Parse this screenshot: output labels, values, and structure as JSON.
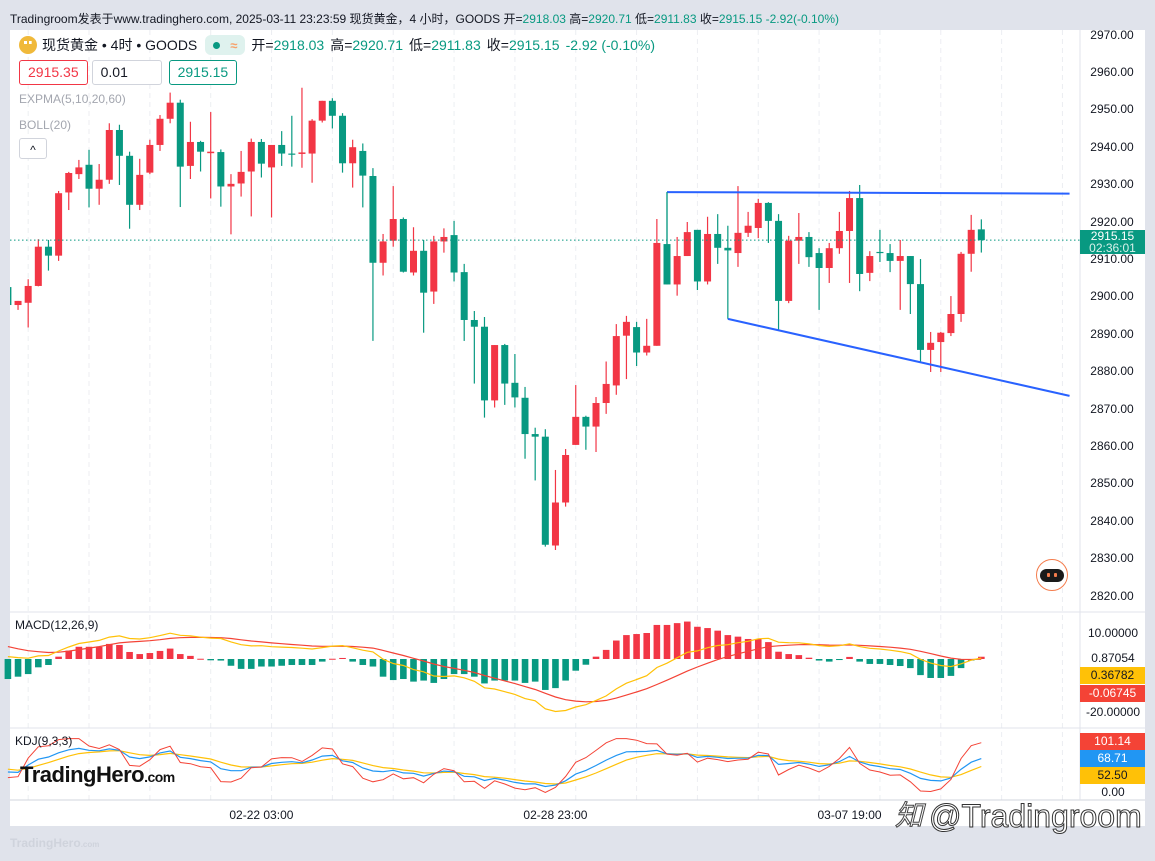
{
  "header": {
    "prefix": "Tradingroom发表于www.tradinghero.com, 2025-03-11 23:23:59 现货黄金，4 小时，GOODS ",
    "open_label": "开=",
    "open": "2918.03",
    "high_label": "高=",
    "high": "2920.71",
    "low_label": "低=",
    "low": "2911.83",
    "close_label": "收=",
    "close": "2915.15",
    "change": "-2.92(-0.10%)"
  },
  "legend": {
    "symbol": "现货黄金 • 4时 • GOODS",
    "coin_icon": "gold-coin-icon",
    "open_label": "开=",
    "open": "2918.03",
    "high_label": "高=",
    "high": "2920.71",
    "low_label": "低=",
    "low": "2911.83",
    "close_label": "收=",
    "close": "2915.15",
    "change": "-2.92 (-0.10%)",
    "wave_glyph": "≈"
  },
  "order": {
    "sell_price": "2915.35",
    "quantity": "0.01",
    "buy_price": "2915.15"
  },
  "indicators": {
    "expma": "EXPMA(5,10,20,60)",
    "boll": "BOLL(20)",
    "collapse_glyph": "^"
  },
  "price_axis": {
    "labels": [
      "2970.00",
      "2960.00",
      "2950.00",
      "2940.00",
      "2930.00",
      "2920.00",
      "2910.00",
      "2900.00",
      "2890.00",
      "2880.00",
      "2870.00",
      "2860.00",
      "2850.00",
      "2840.00",
      "2830.00",
      "2820.00"
    ],
    "current_price": "2915.15",
    "countdown": "02:36:01"
  },
  "macd": {
    "title": "MACD(12,26,9)",
    "axis_top": "10.00000",
    "axis_bottom": "-20.00000",
    "hist_value": "0.87054",
    "dif_value": "0.36782",
    "dea_value": "-0.06745"
  },
  "kdj": {
    "title": "KDJ(9,3,3)",
    "j_value": "101.14",
    "k_value": "68.71",
    "d_value": "52.50",
    "axis_zero": "0.00"
  },
  "time_axis": [
    {
      "label": "02-22 03:00",
      "index": 25
    },
    {
      "label": "02-28 23:00",
      "index": 54
    },
    {
      "label": "03-07 19:00",
      "index": 83
    }
  ],
  "branding": {
    "logo_main": "TradingHero",
    "logo_suffix": ".com",
    "watermark": "@Tradingroom",
    "watermark_icon": "知"
  },
  "colors": {
    "up": "#f23645",
    "down": "#089981",
    "dif": "#ffc107",
    "dea": "#f44336",
    "k": "#2196f3",
    "d": "#ffc107",
    "j": "#f44336",
    "trendline": "#2962ff"
  },
  "chart_data": {
    "type": "candlestick",
    "title": "现货黄金 4H",
    "ylim": [
      2815,
      2973
    ],
    "candles_ohlc": [
      [
        2902.6,
        2903.5,
        2896,
        2897.8
      ],
      [
        2897.8,
        2898.9,
        2896.5,
        2898.9
      ],
      [
        2898.4,
        2904.7,
        2891.8,
        2902.9
      ],
      [
        2902.9,
        2915.4,
        2902.8,
        2913.4
      ],
      [
        2913.4,
        2915.2,
        2907,
        2911
      ],
      [
        2911,
        2928.3,
        2909.6,
        2927.7
      ],
      [
        2927.9,
        2933.4,
        2923.2,
        2933.1
      ],
      [
        2932.8,
        2936.6,
        2931.5,
        2934.6
      ],
      [
        2935.3,
        2939.3,
        2923.9,
        2928.9
      ],
      [
        2928.9,
        2935.5,
        2924.6,
        2931.3
      ],
      [
        2931.3,
        2946.4,
        2930.2,
        2944.6
      ],
      [
        2944.6,
        2946,
        2929.9,
        2937.7
      ],
      [
        2937.7,
        2938.8,
        2918.2,
        2924.6
      ],
      [
        2924.6,
        2936.9,
        2923.2,
        2932.6
      ],
      [
        2933.2,
        2942,
        2932.8,
        2940.6
      ],
      [
        2940.6,
        2948.6,
        2939,
        2947.6
      ],
      [
        2947.6,
        2954.6,
        2946.4,
        2951.9
      ],
      [
        2951.9,
        2952.7,
        2924,
        2934.8
      ],
      [
        2935,
        2946.8,
        2931.5,
        2941.4
      ],
      [
        2941.4,
        2941.7,
        2933.5,
        2938.8
      ],
      [
        2938.4,
        2949.4,
        2926.3,
        2938.8
      ],
      [
        2938.7,
        2939.4,
        2924.1,
        2929.5
      ],
      [
        2929.5,
        2932.8,
        2916.7,
        2930.2
      ],
      [
        2930.3,
        2939,
        2926.8,
        2933.4
      ],
      [
        2933.5,
        2942.3,
        2921.5,
        2941.4
      ],
      [
        2941.4,
        2942.2,
        2931.9,
        2935.6
      ],
      [
        2934.6,
        2940.6,
        2921.2,
        2940.6
      ],
      [
        2940.6,
        2944.3,
        2935,
        2938.3
      ],
      [
        2938.3,
        2948.4,
        2934.8,
        2938
      ],
      [
        2938.2,
        2955.9,
        2934.5,
        2938.6
      ],
      [
        2938.3,
        2947.5,
        2930.5,
        2947.1
      ],
      [
        2947.1,
        2952.4,
        2946.6,
        2952.4
      ],
      [
        2952.4,
        2953.1,
        2945,
        2948.4
      ],
      [
        2948.4,
        2949.1,
        2933.2,
        2935.7
      ],
      [
        2935.7,
        2942,
        2929.2,
        2940
      ],
      [
        2939,
        2941,
        2923.9,
        2932.4
      ],
      [
        2932.3,
        2934.4,
        2888.2,
        2909.1
      ],
      [
        2909.1,
        2916.8,
        2905.7,
        2914.8
      ],
      [
        2915,
        2929.6,
        2913.4,
        2920.8
      ],
      [
        2920.8,
        2921.2,
        2906.5,
        2906.7
      ],
      [
        2906.5,
        2918.6,
        2905.7,
        2912.3
      ],
      [
        2912.3,
        2915.2,
        2890.4,
        2901.1
      ],
      [
        2901.4,
        2916.3,
        2898.1,
        2914.8
      ],
      [
        2914.8,
        2918.3,
        2911.8,
        2916
      ],
      [
        2916.5,
        2920.3,
        2904.1,
        2906.5
      ],
      [
        2906.6,
        2908.8,
        2888.2,
        2893.8
      ],
      [
        2893.8,
        2896.2,
        2876.8,
        2892
      ],
      [
        2892,
        2894.6,
        2867.7,
        2872.3
      ],
      [
        2872.3,
        2887.1,
        2870.4,
        2887.1
      ],
      [
        2887.1,
        2887.4,
        2871.1,
        2876.8
      ],
      [
        2877,
        2884.7,
        2870.4,
        2873.1
      ],
      [
        2873,
        2875.9,
        2856.7,
        2863.3
      ],
      [
        2863.3,
        2865,
        2850.9,
        2862.6
      ],
      [
        2862.6,
        2864.6,
        2833.2,
        2833.7
      ],
      [
        2833.5,
        2853.7,
        2832.3,
        2845
      ],
      [
        2845,
        2859.3,
        2843.9,
        2857.7
      ],
      [
        2860.4,
        2876.4,
        2860.4,
        2867.9
      ],
      [
        2867.9,
        2868.2,
        2859.1,
        2865.3
      ],
      [
        2865.3,
        2873.2,
        2858.5,
        2871.6
      ],
      [
        2871.6,
        2882.7,
        2868.7,
        2876.7
      ],
      [
        2876.3,
        2892.7,
        2873.8,
        2889.5
      ],
      [
        2889.6,
        2894.9,
        2878,
        2893.3
      ],
      [
        2891.9,
        2893.3,
        2881.5,
        2885.1
      ],
      [
        2885.1,
        2894.1,
        2884.3,
        2886.9
      ],
      [
        2886.9,
        2920.8,
        2886.9,
        2914.4
      ],
      [
        2914.1,
        2928,
        2903.3,
        2903.3
      ],
      [
        2903.3,
        2916,
        2900.3,
        2910.9
      ],
      [
        2910.9,
        2920,
        2910.9,
        2917.3
      ],
      [
        2917.9,
        2917.9,
        2901.8,
        2904.1
      ],
      [
        2904.1,
        2921.4,
        2903.3,
        2916.8
      ],
      [
        2916.8,
        2922.1,
        2908.8,
        2913.1
      ],
      [
        2913.1,
        2919,
        2894.1,
        2912.4
      ],
      [
        2911.7,
        2929.6,
        2908,
        2917.1
      ],
      [
        2917.1,
        2922.7,
        2916,
        2919
      ],
      [
        2918.4,
        2926.2,
        2915.7,
        2925.1
      ],
      [
        2925.1,
        2925.3,
        2914.4,
        2920.3
      ],
      [
        2920.3,
        2922.1,
        2890.9,
        2898.9
      ],
      [
        2898.9,
        2916.3,
        2898.3,
        2915
      ],
      [
        2915,
        2922.4,
        2908.8,
        2916
      ],
      [
        2916,
        2917.3,
        2908,
        2910.6
      ],
      [
        2911.7,
        2913,
        2896.5,
        2907.7
      ],
      [
        2907.7,
        2914.4,
        2903.7,
        2913
      ],
      [
        2913,
        2922.7,
        2911.5,
        2917.6
      ],
      [
        2917.6,
        2928.3,
        2903.7,
        2926.4
      ],
      [
        2926.4,
        2929.9,
        2901.5,
        2906.1
      ],
      [
        2906.4,
        2912.2,
        2904.2,
        2910.9
      ],
      [
        2912,
        2917.9,
        2909.3,
        2911.8
      ],
      [
        2911.7,
        2914.1,
        2906.6,
        2909.6
      ],
      [
        2909.6,
        2915.2,
        2896.5,
        2910.9
      ],
      [
        2910.9,
        2910.9,
        2895.4,
        2903.4
      ],
      [
        2903.4,
        2910.1,
        2882.6,
        2885.8
      ],
      [
        2885.8,
        2890.6,
        2879.9,
        2887.7
      ],
      [
        2887.9,
        2890.6,
        2879.9,
        2890.4
      ],
      [
        2890.3,
        2900.2,
        2889.5,
        2895.4
      ],
      [
        2895.4,
        2912,
        2893.3,
        2911.5
      ],
      [
        2911.5,
        2921.9,
        2906.7,
        2917.9
      ],
      [
        2918.03,
        2920.71,
        2911.83,
        2915.15
      ]
    ],
    "macd_histogram": [
      -7.7,
      -6.8,
      -5.8,
      -3.2,
      -2.3,
      0.9,
      3.2,
      4.7,
      4.7,
      4.7,
      5.8,
      5.4,
      2.7,
      1.9,
      2.3,
      3.1,
      4.0,
      1.9,
      1.2,
      0.1,
      -0.5,
      -0.6,
      -2.6,
      -3.8,
      -3.8,
      -2.9,
      -2.9,
      -2.6,
      -2.3,
      -2.3,
      -2.3,
      -1.0,
      0.1,
      0.4,
      -1.0,
      -2.3,
      -2.9,
      -6.8,
      -8.1,
      -7.7,
      -8.7,
      -8.3,
      -9.2,
      -7.7,
      -5.8,
      -5.8,
      -6.8,
      -9.4,
      -8.3,
      -8.3,
      -8.3,
      -9.2,
      -8.7,
      -11.9,
      -11.2,
      -8.3,
      -4.5,
      -2.2,
      0.9,
      3.5,
      7.1,
      9.2,
      9.6,
      10.0,
      13.1,
      13.1,
      13.8,
      14.4,
      12.4,
      11.9,
      10.9,
      9.2,
      8.6,
      7.7,
      7.7,
      6.5,
      2.8,
      1.9,
      1.5,
      0.5,
      -0.6,
      -1.0,
      -0.4,
      0.8,
      -1.0,
      -1.9,
      -1.9,
      -2.3,
      -2.7,
      -3.5,
      -6.2,
      -7.3,
      -7.3,
      -6.5,
      -3.5,
      -0.6,
      0.87054
    ],
    "macd_last_dea": -0.06745,
    "macd_ylim": [
      -22,
      17
    ],
    "kdj_ylim": [
      0,
      110
    ],
    "drawings": [
      {
        "name": "resistance-trendline",
        "from": [
          65,
          2928.0
        ],
        "to": [
          104.7,
          2927.6
        ]
      },
      {
        "name": "support-trendline",
        "from": [
          71,
          2894.1
        ],
        "to": [
          104.7,
          2873.5
        ]
      }
    ]
  }
}
